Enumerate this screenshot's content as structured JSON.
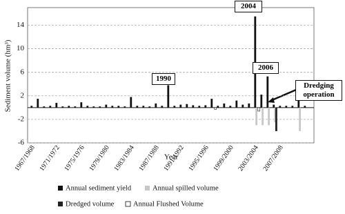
{
  "chart_data": {
    "type": "bar",
    "y_label": "Sediment volume (hm³)",
    "x_label": "Year",
    "categories": [
      "1967/1968",
      null,
      null,
      null,
      "1971/1972",
      null,
      null,
      null,
      "1975/1976",
      null,
      null,
      null,
      "1979/1980",
      null,
      null,
      null,
      "1983/1984",
      null,
      null,
      null,
      "1987/1988",
      null,
      null,
      null,
      "1991/1992",
      null,
      null,
      null,
      "1995/1996",
      null,
      null,
      null,
      "1999/2000",
      null,
      null,
      null,
      "2003/2004",
      null,
      null,
      null,
      "2007/2008",
      null,
      null,
      null,
      null
    ],
    "series": [
      {
        "name": "Annual sediment yield",
        "color": "#111111",
        "values": [
          0.3,
          1.5,
          0.2,
          0.3,
          0.8,
          0.2,
          0.3,
          0.2,
          0.9,
          0.3,
          0.2,
          0.2,
          0.5,
          0.3,
          0.3,
          0.2,
          1.8,
          0.3,
          0.3,
          0.2,
          0.7,
          0.3,
          3.8,
          0.3,
          0.5,
          0.6,
          0.4,
          0.3,
          0.4,
          1.5,
          0.3,
          0.7,
          0.3,
          1.2,
          0.5,
          0.7,
          15.5,
          2.2,
          5.3,
          0.5,
          0.3,
          0.3,
          0.3,
          2.8,
          0.3
        ]
      },
      {
        "name": "Annual spilled volume",
        "color": "#c8c8c8",
        "values": [
          null,
          null,
          null,
          null,
          null,
          null,
          null,
          null,
          null,
          null,
          null,
          null,
          null,
          null,
          null,
          null,
          null,
          null,
          null,
          null,
          null,
          null,
          null,
          null,
          null,
          null,
          null,
          null,
          null,
          null,
          null,
          null,
          null,
          null,
          null,
          null,
          -3,
          -3,
          -3,
          -2.5,
          null,
          null,
          null,
          -4,
          null
        ]
      },
      {
        "name": "Dredged volume",
        "color": "#222222",
        "values": [
          null,
          null,
          null,
          null,
          null,
          null,
          null,
          null,
          null,
          null,
          null,
          null,
          null,
          null,
          null,
          null,
          null,
          null,
          null,
          null,
          null,
          null,
          null,
          null,
          null,
          null,
          null,
          null,
          null,
          null,
          null,
          null,
          null,
          null,
          null,
          null,
          null,
          null,
          null,
          -4,
          null,
          null,
          null,
          null,
          null
        ]
      },
      {
        "name": "Annual Flushed Volume",
        "color": "#ffffff",
        "values": [
          null,
          null,
          null,
          null,
          null,
          null,
          null,
          null,
          null,
          null,
          null,
          null,
          null,
          null,
          null,
          null,
          null,
          null,
          null,
          null,
          null,
          null,
          null,
          null,
          null,
          null,
          null,
          null,
          null,
          -0.3,
          null,
          null,
          null,
          null,
          null,
          null,
          -0.6,
          null,
          null,
          null,
          null,
          null,
          null,
          null,
          null
        ]
      }
    ],
    "ylim": [
      -6,
      17
    ],
    "yticks": [
      -6,
      -2,
      2,
      6,
      10,
      14
    ],
    "grid": true,
    "annotations": [
      "2004",
      "1990",
      "2006",
      "Dredging operation"
    ]
  }
}
